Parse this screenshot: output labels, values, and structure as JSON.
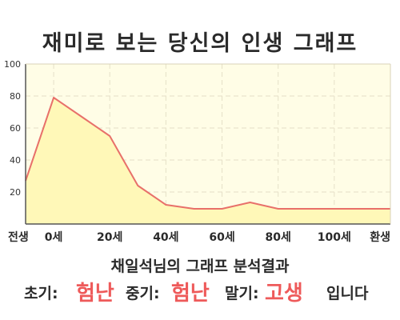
{
  "title": "재미로 보는 당신의 인생 그래프",
  "subtitle": "채일석님의 그래프 분석결과",
  "stages": [
    {
      "label": "초기:",
      "value": "험난"
    },
    {
      "label": "중기:",
      "value": "험난"
    },
    {
      "label": "말기:",
      "value": "고생"
    }
  ],
  "closing": "입니다",
  "colors": {
    "line": "#e8706a",
    "fill": "#fff8b8",
    "plot_bg": "#fffde6",
    "highlight": "#ee5a5a",
    "text": "#2a2a2a"
  },
  "chart_data": {
    "type": "area",
    "x_ticks": [
      "전생",
      "0세",
      "20세",
      "40세",
      "60세",
      "80세",
      "100세",
      "환생"
    ],
    "y_ticks": [
      "20",
      "40",
      "60",
      "80",
      "100"
    ],
    "ylim": [
      0,
      100
    ],
    "grid": true,
    "series": [
      {
        "x": [
          "전생",
          "0세",
          "",
          "20세",
          "",
          "40세",
          "",
          "60세",
          "",
          "80세",
          "",
          "100세",
          "",
          "환생"
        ],
        "values": [
          27,
          79,
          67,
          55,
          24,
          12,
          9.5,
          9.5,
          13.5,
          9.5,
          9.5,
          9.5,
          9.5,
          9.5
        ]
      }
    ]
  }
}
